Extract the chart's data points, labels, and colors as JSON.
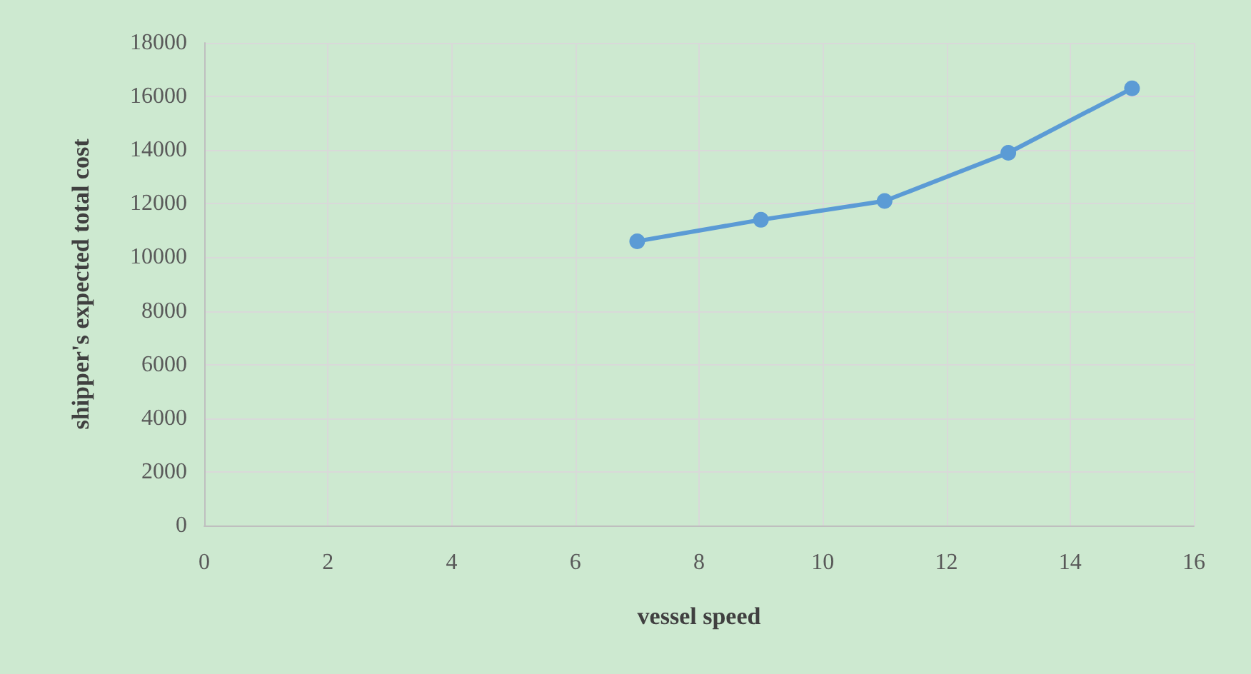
{
  "chart_data": {
    "type": "line",
    "xlabel": "vessel speed",
    "ylabel": "shipper's expected total cost",
    "x": [
      7,
      9,
      11,
      13,
      15
    ],
    "series": [
      {
        "color": "#5b9bd5",
        "values": [
          10600,
          11400,
          12100,
          13900,
          16300
        ]
      }
    ],
    "xlim": [
      0,
      16
    ],
    "xticks": [
      0,
      2,
      4,
      6,
      8,
      10,
      12,
      14,
      16
    ],
    "ylim": [
      0,
      18000
    ],
    "yticks": [
      0,
      2000,
      4000,
      6000,
      8000,
      10000,
      12000,
      14000,
      16000,
      18000
    ],
    "grid": true,
    "marker": "circle",
    "line_style": "solid"
  }
}
